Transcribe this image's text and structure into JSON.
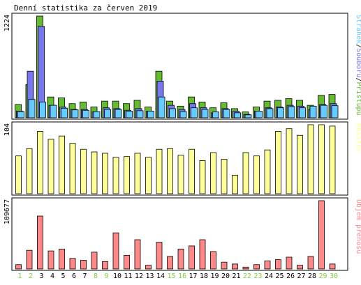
{
  "title": "Denní statistika za červen 2019",
  "colors": {
    "background": "#ffffff",
    "panel_border": "#000000",
    "hits": "#66bb33",
    "files": "#7777ee",
    "pages": "#66ccff",
    "visits": "#ffff99",
    "kbytes": "#ff8888",
    "weekend_label": "#88cc44",
    "weekday_label": "#000000"
  },
  "chart_data": [
    {
      "type": "bar",
      "panel": "hits-files-pages",
      "ymax_label": "1224",
      "ylim": [
        0,
        1224
      ],
      "right_label_parts": [
        {
          "text": "Stránek",
          "color": "#66ccff"
        },
        {
          "text": "/",
          "color": "#000000"
        },
        {
          "text": "Souborů",
          "color": "#7777ee"
        },
        {
          "text": "/",
          "color": "#000000"
        },
        {
          "text": "Přístupů",
          "color": "#66bb33"
        }
      ],
      "categories": [
        "1",
        "2",
        "3",
        "4",
        "5",
        "6",
        "7",
        "8",
        "9",
        "10",
        "11",
        "12",
        "13",
        "14",
        "15",
        "16",
        "17",
        "18",
        "19",
        "20",
        "21",
        "22",
        "23",
        "24",
        "25",
        "26",
        "27",
        "28",
        "29",
        "30"
      ],
      "series": [
        {
          "name": "Přístupů",
          "values": [
            160,
            400,
            1224,
            250,
            240,
            170,
            190,
            130,
            200,
            200,
            170,
            210,
            130,
            560,
            200,
            140,
            250,
            190,
            120,
            180,
            110,
            70,
            130,
            200,
            210,
            230,
            210,
            150,
            270,
            280
          ]
        },
        {
          "name": "Souborů",
          "values": [
            80,
            560,
            1100,
            150,
            130,
            100,
            100,
            70,
            120,
            110,
            90,
            110,
            80,
            440,
            150,
            100,
            170,
            120,
            60,
            110,
            80,
            40,
            80,
            120,
            130,
            150,
            140,
            100,
            160,
            170
          ]
        },
        {
          "name": "Stránek",
          "values": [
            75,
            220,
            190,
            150,
            115,
            95,
            90,
            75,
            100,
            100,
            80,
            85,
            80,
            250,
            110,
            75,
            120,
            100,
            70,
            100,
            60,
            35,
            80,
            110,
            120,
            135,
            120,
            140,
            150,
            145
          ]
        }
      ]
    },
    {
      "type": "bar",
      "panel": "visits",
      "ymax_label": "104",
      "ylim": [
        0,
        104
      ],
      "right_label_parts": [
        {
          "text": "Návštěv",
          "color": "#ffff99"
        }
      ],
      "categories": [
        "1",
        "2",
        "3",
        "4",
        "5",
        "6",
        "7",
        "8",
        "9",
        "10",
        "11",
        "12",
        "13",
        "14",
        "15",
        "16",
        "17",
        "18",
        "19",
        "20",
        "21",
        "22",
        "23",
        "24",
        "25",
        "26",
        "27",
        "28",
        "29",
        "30"
      ],
      "series": [
        {
          "name": "Návštěv",
          "values": [
            57,
            68,
            94,
            82,
            87,
            76,
            67,
            63,
            61,
            55,
            56,
            61,
            55,
            67,
            68,
            58,
            67,
            50,
            62,
            52,
            28,
            62,
            57,
            66,
            94,
            98,
            88,
            104,
            104,
            102
          ]
        }
      ]
    },
    {
      "type": "bar",
      "panel": "kbytes",
      "ymax_label": "109677",
      "ylim": [
        0,
        109677
      ],
      "right_label_parts": [
        {
          "text": "Objem přenosu",
          "color": "#ff8888"
        }
      ],
      "categories": [
        "1",
        "2",
        "3",
        "4",
        "5",
        "6",
        "7",
        "8",
        "9",
        "10",
        "11",
        "12",
        "13",
        "14",
        "15",
        "16",
        "17",
        "18",
        "19",
        "20",
        "21",
        "22",
        "23",
        "24",
        "25",
        "26",
        "27",
        "28",
        "29",
        "30"
      ],
      "series": [
        {
          "name": "Objem přenosu",
          "values": [
            7000,
            30000,
            85000,
            29000,
            32000,
            17000,
            14000,
            27000,
            12000,
            58000,
            22000,
            47000,
            6000,
            43000,
            20000,
            32000,
            37000,
            47000,
            28000,
            11000,
            8000,
            3000,
            7000,
            13000,
            15000,
            19000,
            6000,
            20000,
            109677,
            8000
          ]
        }
      ]
    }
  ],
  "x_labels": [
    {
      "text": "1",
      "weekend": true
    },
    {
      "text": "2",
      "weekend": true
    },
    {
      "text": "3",
      "weekend": false
    },
    {
      "text": "4",
      "weekend": false
    },
    {
      "text": "5",
      "weekend": false
    },
    {
      "text": "6",
      "weekend": false
    },
    {
      "text": "7",
      "weekend": false
    },
    {
      "text": "8",
      "weekend": true
    },
    {
      "text": "9",
      "weekend": true
    },
    {
      "text": "10",
      "weekend": false
    },
    {
      "text": "11",
      "weekend": false
    },
    {
      "text": "12",
      "weekend": false
    },
    {
      "text": "13",
      "weekend": false
    },
    {
      "text": "14",
      "weekend": false
    },
    {
      "text": "15",
      "weekend": true
    },
    {
      "text": "16",
      "weekend": true
    },
    {
      "text": "17",
      "weekend": false
    },
    {
      "text": "18",
      "weekend": false
    },
    {
      "text": "19",
      "weekend": false
    },
    {
      "text": "20",
      "weekend": false
    },
    {
      "text": "21",
      "weekend": false
    },
    {
      "text": "22",
      "weekend": true
    },
    {
      "text": "23",
      "weekend": true
    },
    {
      "text": "24",
      "weekend": false
    },
    {
      "text": "25",
      "weekend": false
    },
    {
      "text": "26",
      "weekend": false
    },
    {
      "text": "27",
      "weekend": false
    },
    {
      "text": "28",
      "weekend": false
    },
    {
      "text": "29",
      "weekend": true
    },
    {
      "text": "30",
      "weekend": true
    }
  ]
}
